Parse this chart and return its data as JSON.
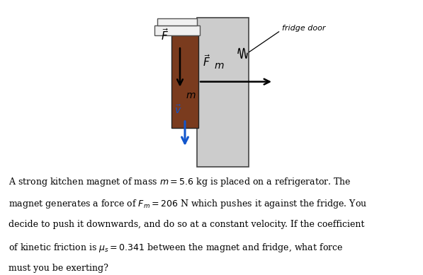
{
  "bg_color": "#ffffff",
  "fridge_color": "#cccccc",
  "magnet_color": "#7a3b1e",
  "magnet_top_color": "#f0f0f0",
  "arrow_F_color": "#000000",
  "arrow_Fm_color": "#000000",
  "arrow_v_color": "#1155cc",
  "fridge_label": "fridge door",
  "fig_w": 5.97,
  "fig_h": 3.89,
  "dpi": 100
}
